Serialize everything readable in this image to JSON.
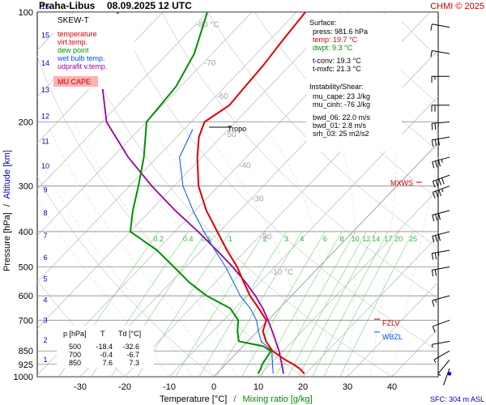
{
  "header": {
    "station": "Praha-Libus",
    "datetime": "08.09.2025 12 UTC",
    "copyright": "CHMI © 2025"
  },
  "legend": {
    "title": "SKEW-T",
    "items": [
      {
        "label": "temperature",
        "color": "#e00000"
      },
      {
        "label": "virt.temp.",
        "color": "#e00000"
      },
      {
        "label": "dew point",
        "color": "#009000"
      },
      {
        "label": "wet bulb temp.",
        "color": "#0050ff"
      },
      {
        "label": "udprafit v.temp.",
        "color": "#a000a0"
      }
    ],
    "cape_badge": "MU CAPE"
  },
  "surface": {
    "title": "Surface:",
    "lines": [
      "press: 981.6 hPa",
      "temp: 19.7 °C",
      "dwpt: 9.3 °C"
    ],
    "conv": [
      "t-conv: 19.3 °C",
      "t-mxfc: 21.3 °C"
    ]
  },
  "instability": {
    "title": "Instability/Shear:",
    "lines": [
      "mu_cape: 23 J/kg",
      "mu_cinh: -76 J/kg"
    ],
    "shear": [
      "bwd_06: 22.0 m/s",
      "bwd_01: 2.8 m/s",
      "srh_03: 25 m2/s2"
    ]
  },
  "table": {
    "headers": [
      "p [hPa]",
      "T",
      "Td [°C]"
    ],
    "rows": [
      [
        "500",
        "-18.4",
        "-32.6"
      ],
      [
        "700",
        "-0.4",
        "-6.7"
      ],
      [
        "850",
        "7.6",
        "7.3"
      ]
    ]
  },
  "markers": {
    "tropo": "Tropo",
    "mxws": "MXWS",
    "fzlv": "FZLV",
    "wbzl": "WBZL"
  },
  "footer": {
    "sfc": "SFC: 304 m ASL"
  },
  "axes": {
    "xlabel": "Temperature [°C]",
    "xlabel_sep": "/",
    "xlabel2": "Mixing ratio [g/kg]",
    "ylabel": "Pressure [hPa]",
    "ylabel_sep": "/",
    "ylabel2": "Altitude [km]"
  },
  "colors": {
    "temperature": "#e00000",
    "dewpoint": "#009000",
    "wetbulb": "#0050ff",
    "parcel": "#a000a0",
    "isobar": "#888888",
    "mixing": "#88dd88",
    "altitude": "#0000cc",
    "cape": "#ffb0b0"
  },
  "chart_data": {
    "type": "line",
    "skew": true,
    "x_ticks": [
      -30,
      -20,
      -10,
      0,
      10,
      20,
      30,
      40
    ],
    "p_ticks": [
      100,
      200,
      300,
      400,
      500,
      600,
      700,
      850,
      925,
      1000
    ],
    "alt_ticks": [
      1,
      2,
      3,
      4,
      5,
      6,
      7,
      8,
      9,
      10,
      11,
      12,
      13,
      14,
      15,
      16
    ],
    "isotherm_labels": [
      "-80 °C",
      "-70",
      "-60",
      "-50",
      "-40",
      "-30",
      "-20",
      "-10 °C"
    ],
    "mixing_labels": [
      "0.2",
      "0.4",
      "0.6",
      "1",
      "2",
      "3",
      "4",
      "6",
      "8",
      "10",
      "12",
      "14",
      "17",
      "20",
      "25"
    ],
    "series": [
      {
        "name": "temperature",
        "points": [
          [
            981.6,
            19.7
          ],
          [
            950,
            17.5
          ],
          [
            925,
            15.2
          ],
          [
            900,
            12.5
          ],
          [
            850,
            7.6
          ],
          [
            800,
            4.1
          ],
          [
            750,
            1.2
          ],
          [
            700,
            -0.4
          ],
          [
            650,
            -4.6
          ],
          [
            600,
            -9.3
          ],
          [
            550,
            -13.7
          ],
          [
            500,
            -18.4
          ],
          [
            450,
            -24.3
          ],
          [
            400,
            -30.5
          ],
          [
            350,
            -37.5
          ],
          [
            300,
            -44.5
          ],
          [
            250,
            -51.0
          ],
          [
            220,
            -55.0
          ],
          [
            200,
            -57.0
          ],
          [
            180,
            -55.0
          ],
          [
            160,
            -55.5
          ],
          [
            140,
            -56.0
          ],
          [
            120,
            -57.0
          ],
          [
            100,
            -58.0
          ]
        ]
      },
      {
        "name": "dew point",
        "points": [
          [
            981.6,
            9.3
          ],
          [
            950,
            8.8
          ],
          [
            925,
            8.2
          ],
          [
            900,
            7.9
          ],
          [
            850,
            7.3
          ],
          [
            825,
            4.5
          ],
          [
            800,
            -2.0
          ],
          [
            780,
            -3.0
          ],
          [
            750,
            -4.5
          ],
          [
            700,
            -6.7
          ],
          [
            650,
            -11.0
          ],
          [
            600,
            -19.0
          ],
          [
            550,
            -26.0
          ],
          [
            500,
            -32.6
          ],
          [
            450,
            -40.0
          ],
          [
            400,
            -50.0
          ],
          [
            350,
            -54.0
          ],
          [
            300,
            -58.0
          ],
          [
            250,
            -63.0
          ],
          [
            200,
            -70.0
          ],
          [
            160,
            -71.0
          ],
          [
            130,
            -74.0
          ],
          [
            100,
            -80.0
          ]
        ]
      },
      {
        "name": "wet bulb temp.",
        "points": [
          [
            981.6,
            12.7
          ],
          [
            925,
            10.5
          ],
          [
            850,
            7.5
          ],
          [
            800,
            3.0
          ],
          [
            750,
            0.2
          ],
          [
            700,
            -2.6
          ],
          [
            650,
            -6.5
          ],
          [
            600,
            -11.5
          ],
          [
            550,
            -16.0
          ],
          [
            500,
            -21.0
          ],
          [
            450,
            -27.0
          ],
          [
            400,
            -33.5
          ],
          [
            350,
            -40.5
          ],
          [
            300,
            -48.0
          ],
          [
            250,
            -55.0
          ],
          [
            210,
            -58.0
          ]
        ]
      },
      {
        "name": "udprafit v.temp.",
        "points": [
          [
            981.6,
            15.0
          ],
          [
            925,
            12.6
          ],
          [
            850,
            9.1
          ],
          [
            800,
            6.3
          ],
          [
            750,
            3.3
          ],
          [
            700,
            0.0
          ],
          [
            650,
            -3.7
          ],
          [
            600,
            -8.1
          ],
          [
            550,
            -13.3
          ],
          [
            500,
            -19.4
          ],
          [
            450,
            -26.6
          ],
          [
            400,
            -34.8
          ],
          [
            350,
            -44.5
          ],
          [
            300,
            -55.0
          ],
          [
            250,
            -66.5
          ],
          [
            200,
            -79.0
          ],
          [
            150,
            -90.0
          ],
          [
            120,
            -96.0
          ],
          [
            100,
            -100.0
          ]
        ]
      }
    ],
    "wind_barbs": [
      {
        "p": 950,
        "dir": 200,
        "spd": 3
      },
      {
        "p": 900,
        "dir": 220,
        "spd": 5
      },
      {
        "p": 850,
        "dir": 240,
        "spd": 6
      },
      {
        "p": 800,
        "dir": 260,
        "spd": 8
      },
      {
        "p": 700,
        "dir": 250,
        "spd": 12
      },
      {
        "p": 600,
        "dir": 255,
        "spd": 18
      },
      {
        "p": 500,
        "dir": 260,
        "spd": 22
      },
      {
        "p": 450,
        "dir": 260,
        "spd": 26
      },
      {
        "p": 400,
        "dir": 255,
        "spd": 30
      },
      {
        "p": 350,
        "dir": 255,
        "spd": 34
      },
      {
        "p": 300,
        "dir": 250,
        "spd": 38
      },
      {
        "p": 280,
        "dir": 250,
        "spd": 40
      },
      {
        "p": 250,
        "dir": 255,
        "spd": 36
      },
      {
        "p": 220,
        "dir": 260,
        "spd": 30
      },
      {
        "p": 200,
        "dir": 265,
        "spd": 26
      },
      {
        "p": 180,
        "dir": 270,
        "spd": 20
      },
      {
        "p": 150,
        "dir": 270,
        "spd": 18
      },
      {
        "p": 130,
        "dir": 280,
        "spd": 14
      },
      {
        "p": 110,
        "dir": 280,
        "spd": 12
      }
    ]
  }
}
